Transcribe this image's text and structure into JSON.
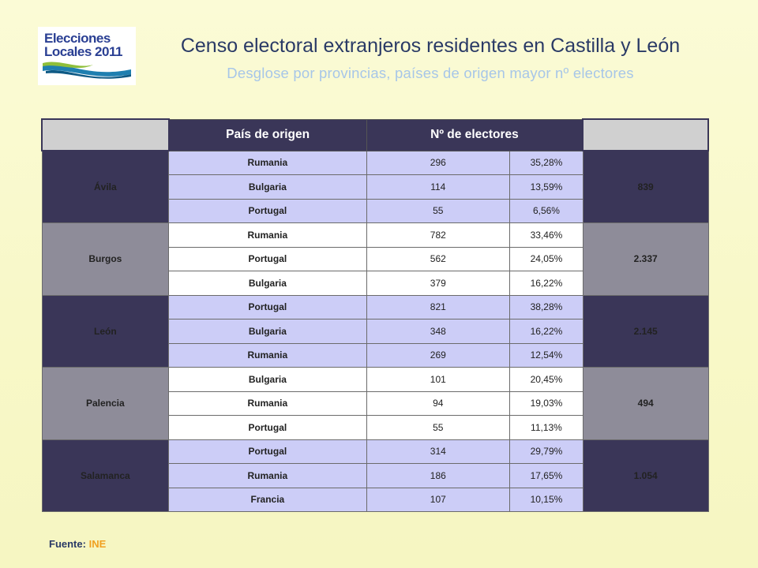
{
  "logo": {
    "line1": "Elecciones",
    "line2": "Locales 2011"
  },
  "title": "Censo electoral extranjeros residentes en Castilla y León",
  "subtitle": "Desglose por provincias, países de origen mayor nº electores",
  "table": {
    "headers": [
      "País de origen",
      "Nº de electores"
    ],
    "provinces": [
      {
        "name": "Ávila",
        "total": "839",
        "rows": [
          {
            "country": "Rumania",
            "electores": "296",
            "pct": "35,28%"
          },
          {
            "country": "Bulgaria",
            "electores": "114",
            "pct": "13,59%"
          },
          {
            "country": "Portugal",
            "electores": "55",
            "pct": "6,56%"
          }
        ]
      },
      {
        "name": "Burgos",
        "total": "2.337",
        "rows": [
          {
            "country": "Rumania",
            "electores": "782",
            "pct": "33,46%"
          },
          {
            "country": "Portugal",
            "electores": "562",
            "pct": "24,05%"
          },
          {
            "country": "Bulgaria",
            "electores": "379",
            "pct": "16,22%"
          }
        ]
      },
      {
        "name": "León",
        "total": "2.145",
        "rows": [
          {
            "country": "Portugal",
            "electores": "821",
            "pct": "38,28%"
          },
          {
            "country": "Bulgaria",
            "electores": "348",
            "pct": "16,22%"
          },
          {
            "country": "Rumania",
            "electores": "269",
            "pct": "12,54%"
          }
        ]
      },
      {
        "name": "Palencia",
        "total": "494",
        "rows": [
          {
            "country": "Bulgaria",
            "electores": "101",
            "pct": "20,45%"
          },
          {
            "country": "Rumania",
            "electores": "94",
            "pct": "19,03%"
          },
          {
            "country": "Portugal",
            "electores": "55",
            "pct": "11,13%"
          }
        ]
      },
      {
        "name": "Salamanca",
        "total": "1.054",
        "rows": [
          {
            "country": "Portugal",
            "electores": "314",
            "pct": "29,79%"
          },
          {
            "country": "Rumania",
            "electores": "186",
            "pct": "17,65%"
          },
          {
            "country": "Francia",
            "electores": "107",
            "pct": "10,15%"
          }
        ]
      }
    ]
  },
  "source": {
    "label": "Fuente:",
    "value": "INE"
  }
}
